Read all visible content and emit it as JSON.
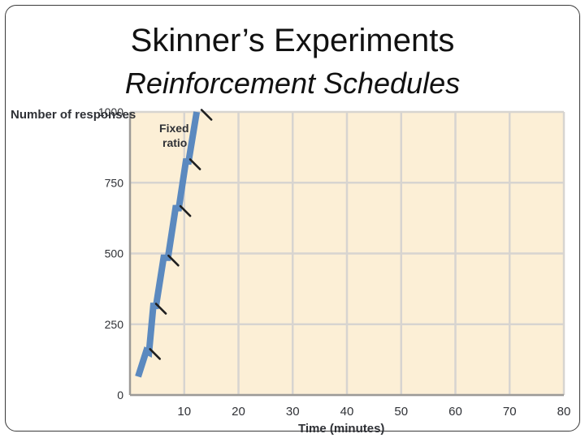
{
  "slide": {
    "title": "Skinner’s Experiments",
    "subtitle": "Reinforcement Schedules"
  },
  "chart_data": {
    "type": "line",
    "ylabel": "Number of responses",
    "xlabel": "Time (minutes)",
    "xlim": [
      0,
      80
    ],
    "ylim": [
      0,
      1000
    ],
    "x_ticks": [
      "10",
      "20",
      "30",
      "40",
      "50",
      "60",
      "70",
      "80"
    ],
    "y_ticks": [
      "0",
      "250",
      "500",
      "750",
      "1000"
    ],
    "grid": true,
    "series": [
      {
        "name": "Fixed ratio",
        "color": "#5b89bf",
        "points": [
          [
            1.5,
            65
          ],
          [
            3,
            155
          ],
          [
            3.5,
            150
          ],
          [
            4.3,
            315
          ],
          [
            4.8,
            315
          ],
          [
            6.2,
            485
          ],
          [
            7,
            485
          ],
          [
            8.4,
            660
          ],
          [
            9,
            660
          ],
          [
            10.3,
            825
          ],
          [
            10.8,
            825
          ],
          [
            12.3,
            1000
          ]
        ]
      }
    ],
    "reinforcement_marks": [
      [
        3.7,
        145
      ],
      [
        4.8,
        305
      ],
      [
        7.1,
        475
      ],
      [
        9.3,
        650
      ],
      [
        11.1,
        815
      ],
      [
        13.2,
        990
      ]
    ],
    "plot_background": "#fcefd6",
    "grid_color": "#d7d4d0"
  }
}
